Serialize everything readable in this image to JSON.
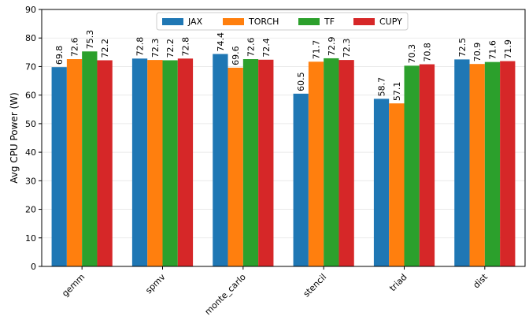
{
  "chart_data": {
    "type": "bar",
    "title": "",
    "xlabel": "",
    "ylabel": "Avg CPU Power (W)",
    "ylim": [
      0,
      90
    ],
    "yticks": [
      0,
      10,
      20,
      30,
      40,
      50,
      60,
      70,
      80,
      90
    ],
    "grid": "horizontal",
    "legend_position": "top-center",
    "categories": [
      "gemm",
      "spmv",
      "monte_carlo",
      "stencil",
      "triad",
      "dist"
    ],
    "series": [
      {
        "name": "JAX",
        "color": "#1f77b4",
        "values": [
          69.8,
          72.8,
          74.4,
          60.5,
          58.7,
          72.5
        ]
      },
      {
        "name": "TORCH",
        "color": "#ff7f0e",
        "values": [
          72.6,
          72.3,
          69.6,
          71.7,
          57.1,
          70.9
        ]
      },
      {
        "name": "TF",
        "color": "#2ca02c",
        "values": [
          75.3,
          72.2,
          72.6,
          72.9,
          70.3,
          71.6
        ]
      },
      {
        "name": "CUPY",
        "color": "#d62728",
        "values": [
          72.2,
          72.8,
          72.4,
          72.3,
          70.8,
          71.9
        ]
      }
    ]
  }
}
